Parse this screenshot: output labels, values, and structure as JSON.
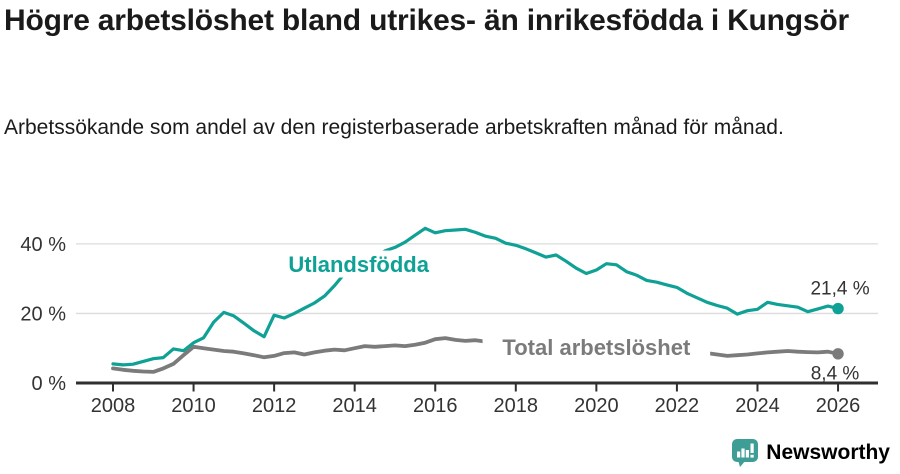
{
  "header": {
    "title": "Högre arbetslöshet bland utrikes- än inrikesfödda i Kungsör",
    "subtitle": "Arbetssökande som andel av den registerbaserade arbetskraften månad för månad."
  },
  "footer": {
    "brand": "Newsworthy"
  },
  "colors": {
    "accent_teal": "#0fa195",
    "series_gray": "#7b7b7b",
    "grid": "#dcdcdc",
    "axis": "#2f2f2f",
    "tick_text": "#333333",
    "value_text": "#333333",
    "title_text": "#1a1a1a",
    "brand_teal": "#3e9e96"
  },
  "chart_data": {
    "type": "line",
    "title": "Högre arbetslöshet bland utrikes- än inrikesfödda i Kungsör",
    "subtitle": "Arbetssökande som andel av den registerbaserade arbetskraften månad för månad.",
    "xlabel": "",
    "ylabel": "",
    "grid": "horizontal",
    "legend_position": "inline-labels",
    "xlim": [
      2007.1,
      2027.0
    ],
    "ylim": [
      0,
      47
    ],
    "xticks": [
      2008,
      2010,
      2012,
      2014,
      2016,
      2018,
      2020,
      2022,
      2024,
      2026
    ],
    "yticks": [
      {
        "v": 0,
        "label": "0 %"
      },
      {
        "v": 20,
        "label": "20 %"
      },
      {
        "v": 40,
        "label": "40 %"
      }
    ],
    "x": [
      2008.0,
      2008.25,
      2008.5,
      2008.75,
      2009.0,
      2009.25,
      2009.5,
      2009.75,
      2010.0,
      2010.25,
      2010.5,
      2010.75,
      2011.0,
      2011.25,
      2011.5,
      2011.75,
      2012.0,
      2012.25,
      2012.5,
      2012.75,
      2013.0,
      2013.25,
      2013.5,
      2013.75,
      2014.0,
      2014.25,
      2014.5,
      2014.75,
      2015.0,
      2015.25,
      2015.5,
      2015.75,
      2016.0,
      2016.25,
      2016.5,
      2016.75,
      2017.0,
      2017.25,
      2017.5,
      2017.75,
      2018.0,
      2018.25,
      2018.5,
      2018.75,
      2019.0,
      2019.25,
      2019.5,
      2019.75,
      2020.0,
      2020.25,
      2020.5,
      2020.75,
      2021.0,
      2021.25,
      2021.5,
      2021.75,
      2022.0,
      2022.25,
      2022.5,
      2022.75,
      2023.0,
      2023.25,
      2023.5,
      2023.75,
      2024.0,
      2024.25,
      2024.5,
      2024.75,
      2025.0,
      2025.25,
      2025.5,
      2025.75,
      2026.0
    ],
    "series": [
      {
        "name": "Utlandsfödda",
        "color_key": "accent_teal",
        "end_label": "21,4 %",
        "end_value": 21.4,
        "end_label_position": "above",
        "label_x": 2014.1,
        "label_y": 34.2,
        "values": [
          5.5,
          5.2,
          5.4,
          6.2,
          7.0,
          7.3,
          9.8,
          9.3,
          11.6,
          13.0,
          17.5,
          20.3,
          19.3,
          17.2,
          15.0,
          13.3,
          19.5,
          18.7,
          20.0,
          21.5,
          23.0,
          25.0,
          28.0,
          31.5,
          33.0,
          34.5,
          36.0,
          38.0,
          39.0,
          40.5,
          42.5,
          44.5,
          43.2,
          43.8,
          44.0,
          44.2,
          43.3,
          42.2,
          41.6,
          40.2,
          39.6,
          38.6,
          37.4,
          36.2,
          36.8,
          35.0,
          33.0,
          31.5,
          32.5,
          34.3,
          34.0,
          32.0,
          31.0,
          29.5,
          29.0,
          28.2,
          27.5,
          25.8,
          24.5,
          23.2,
          22.3,
          21.5,
          19.8,
          20.8,
          21.2,
          23.2,
          22.6,
          22.2,
          21.8,
          20.5,
          21.3,
          22.1,
          21.4
        ]
      },
      {
        "name": "Total arbetslöshet",
        "color_key": "series_gray",
        "end_label": "8,4 %",
        "end_value": 8.4,
        "end_label_position": "below",
        "label_x": 2020.0,
        "label_y": 10.35,
        "values": [
          4.2,
          3.8,
          3.5,
          3.3,
          3.2,
          4.2,
          5.5,
          8.0,
          10.4,
          10.0,
          9.6,
          9.2,
          9.0,
          8.5,
          8.0,
          7.4,
          7.8,
          8.6,
          8.8,
          8.2,
          8.8,
          9.3,
          9.6,
          9.4,
          10.0,
          10.6,
          10.4,
          10.6,
          10.8,
          10.6,
          11.0,
          11.6,
          12.6,
          12.9,
          12.4,
          12.1,
          12.3,
          11.9,
          11.6,
          11.4,
          11.2,
          11.0,
          10.8,
          10.7,
          10.6,
          10.4,
          10.3,
          10.2,
          10.4,
          10.8,
          10.6,
          10.4,
          10.2,
          10.0,
          9.8,
          9.6,
          9.5,
          9.4,
          9.2,
          8.6,
          8.2,
          7.8,
          8.0,
          8.2,
          8.5,
          8.8,
          9.0,
          9.2,
          9.0,
          8.9,
          8.8,
          9.0,
          8.4
        ]
      }
    ]
  }
}
